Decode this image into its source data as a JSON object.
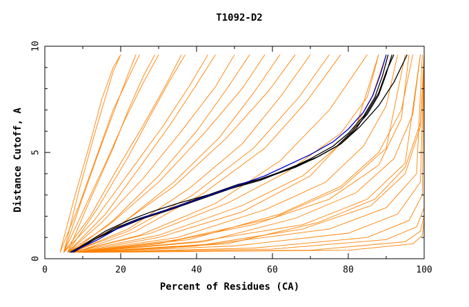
{
  "chart_data": {
    "type": "line",
    "title": "T1092-D2",
    "xlabel": "Percent of Residues (CA)",
    "ylabel": "Distance Cutoff, A",
    "xlim": [
      0,
      100
    ],
    "ylim": [
      0,
      10
    ],
    "x_ticks": [
      {
        "value": 0,
        "label": "0"
      },
      {
        "value": 20,
        "label": "20"
      },
      {
        "value": 40,
        "label": "40"
      },
      {
        "value": 60,
        "label": "60"
      },
      {
        "value": 80,
        "label": "80"
      },
      {
        "value": 100,
        "label": "100"
      }
    ],
    "y_ticks": [
      {
        "value": 0,
        "label": "0"
      },
      {
        "value": 5,
        "label": "5"
      },
      {
        "value": 10,
        "label": "10"
      }
    ],
    "minor_x_step": 10,
    "minor_y_step": 1,
    "grid": false,
    "legend": "none",
    "colors": {
      "background_models": "#ff8000",
      "highlight_models": "#000000",
      "reference_model": "#0000cc"
    },
    "series": [
      {
        "group": "background",
        "x": [
          4,
          8,
          12,
          15,
          18,
          20
        ],
        "y": [
          0.3,
          3,
          5.5,
          7.5,
          9,
          9.6
        ]
      },
      {
        "group": "background",
        "x": [
          4,
          9,
          14,
          18,
          22,
          25
        ],
        "y": [
          0.3,
          2.5,
          5,
          7,
          8.5,
          9.6
        ]
      },
      {
        "group": "background",
        "x": [
          5,
          10,
          16,
          21,
          26,
          30
        ],
        "y": [
          0.3,
          2.2,
          4.5,
          6.5,
          8.3,
          9.6
        ]
      },
      {
        "group": "background",
        "x": [
          5,
          12,
          19,
          26,
          32,
          36
        ],
        "y": [
          0.3,
          2,
          4.2,
          6.3,
          8.2,
          9.6
        ]
      },
      {
        "group": "background",
        "x": [
          5,
          13,
          22,
          31,
          38,
          43
        ],
        "y": [
          0.3,
          1.8,
          4,
          6.2,
          8.1,
          9.6
        ]
      },
      {
        "group": "background",
        "x": [
          6,
          15,
          26,
          36,
          45,
          50
        ],
        "y": [
          0.3,
          1.7,
          3.8,
          6,
          8.1,
          9.6
        ]
      },
      {
        "group": "background",
        "x": [
          6,
          17,
          30,
          42,
          52,
          58
        ],
        "y": [
          0.3,
          1.6,
          3.6,
          5.9,
          8,
          9.6
        ]
      },
      {
        "group": "background",
        "x": [
          6,
          19,
          34,
          48,
          59,
          66
        ],
        "y": [
          0.3,
          1.5,
          3.4,
          5.7,
          7.9,
          9.6
        ]
      },
      {
        "group": "background",
        "x": [
          7,
          22,
          39,
          55,
          67,
          75
        ],
        "y": [
          0.3,
          1.3,
          3,
          5.2,
          7.6,
          9.6
        ]
      },
      {
        "group": "background",
        "x": [
          7,
          25,
          45,
          62,
          75,
          85
        ],
        "y": [
          0.3,
          1.1,
          2.6,
          4.6,
          7,
          9.6
        ]
      },
      {
        "group": "background",
        "x": [
          8,
          30,
          52,
          70,
          82,
          88
        ],
        "y": [
          0.3,
          1,
          2.2,
          3.9,
          6.2,
          9.6
        ]
      },
      {
        "group": "background",
        "x": [
          8,
          35,
          60,
          78,
          90,
          95
        ],
        "y": [
          0.3,
          0.9,
          1.9,
          3.3,
          5.2,
          9.6
        ]
      },
      {
        "group": "background",
        "x": [
          8,
          40,
          68,
          85,
          95,
          99
        ],
        "y": [
          0.3,
          0.8,
          1.6,
          2.8,
          4.5,
          9.6
        ]
      },
      {
        "group": "background",
        "x": [
          9,
          45,
          75,
          90,
          98,
          99.5
        ],
        "y": [
          0.3,
          0.7,
          1.4,
          2.4,
          4,
          9.6
        ]
      },
      {
        "group": "background",
        "x": [
          9,
          50,
          80,
          93,
          99,
          100
        ],
        "y": [
          0.3,
          0.6,
          1.2,
          2.1,
          3.6,
          9.6
        ]
      },
      {
        "group": "background",
        "x": [
          10,
          55,
          85,
          96,
          99.5,
          100
        ],
        "y": [
          0.3,
          0.5,
          1.0,
          1.8,
          3,
          9.6
        ]
      },
      {
        "group": "background",
        "x": [
          10,
          60,
          90,
          98,
          100,
          100
        ],
        "y": [
          0.3,
          0.45,
          0.9,
          1.5,
          2.4,
          9.6
        ]
      },
      {
        "group": "background",
        "x": [
          11,
          70,
          95,
          99,
          100,
          100
        ],
        "y": [
          0.3,
          0.4,
          0.8,
          1.3,
          2,
          9.6
        ]
      },
      {
        "group": "background",
        "x": [
          12,
          80,
          97,
          99.5,
          100,
          100
        ],
        "y": [
          0.3,
          0.4,
          0.7,
          1.1,
          1.8,
          9.6
        ]
      },
      {
        "group": "background",
        "x": [
          7,
          28,
          48,
          64,
          78,
          85,
          88
        ],
        "y": [
          0.3,
          1.2,
          2.6,
          4.1,
          5.9,
          7.6,
          9.6
        ]
      },
      {
        "group": "background",
        "x": [
          7,
          30,
          52,
          68,
          80,
          86,
          90
        ],
        "y": [
          0.3,
          1.1,
          2.5,
          3.9,
          5.7,
          7.5,
          9.6
        ]
      },
      {
        "group": "background",
        "x": [
          8,
          35,
          58,
          74,
          84,
          90,
          93
        ],
        "y": [
          0.3,
          1,
          2.3,
          3.6,
          5.3,
          7.2,
          9.6
        ]
      },
      {
        "group": "background",
        "x": [
          8,
          38,
          62,
          78,
          88,
          94,
          97
        ],
        "y": [
          0.3,
          0.9,
          2.1,
          3.4,
          5,
          7,
          9.6
        ]
      },
      {
        "group": "background",
        "x": [
          9,
          42,
          66,
          82,
          92,
          97,
          99
        ],
        "y": [
          0.3,
          0.8,
          1.9,
          3.1,
          4.7,
          6.8,
          9.6
        ]
      },
      {
        "group": "background",
        "x": [
          10,
          48,
          72,
          87,
          95,
          99,
          100
        ],
        "y": [
          0.3,
          0.7,
          1.7,
          2.8,
          4.3,
          6.4,
          9.6
        ]
      },
      {
        "group": "background",
        "x": [
          6,
          12,
          18,
          22,
          26,
          29
        ],
        "y": [
          0.3,
          2.8,
          5.2,
          7,
          8.6,
          9.6
        ]
      },
      {
        "group": "background",
        "x": [
          6,
          14,
          22,
          28,
          33,
          37
        ],
        "y": [
          0.3,
          2.4,
          4.8,
          6.8,
          8.4,
          9.6
        ]
      },
      {
        "group": "background",
        "x": [
          6,
          16,
          25,
          33,
          40,
          45
        ],
        "y": [
          0.3,
          2.1,
          4.3,
          6.3,
          8.2,
          9.6
        ]
      },
      {
        "group": "background",
        "x": [
          7,
          18,
          30,
          40,
          48,
          54
        ],
        "y": [
          0.3,
          1.8,
          3.9,
          6,
          8,
          9.6
        ]
      },
      {
        "group": "background",
        "x": [
          7,
          20,
          34,
          46,
          55,
          62
        ],
        "y": [
          0.3,
          1.6,
          3.6,
          5.7,
          7.8,
          9.6
        ]
      },
      {
        "group": "background",
        "x": [
          7,
          22,
          38,
          52,
          62,
          70
        ],
        "y": [
          0.3,
          1.4,
          3.3,
          5.4,
          7.6,
          9.6
        ]
      },
      {
        "group": "background",
        "x": [
          8,
          24,
          42,
          58,
          69,
          78
        ],
        "y": [
          0.3,
          1.3,
          3.1,
          5.2,
          7.4,
          9.6
        ]
      },
      {
        "group": "background",
        "x": [
          5,
          9,
          13,
          16,
          18,
          20
        ],
        "y": [
          0.3,
          3.2,
          5.8,
          7.6,
          8.8,
          9.6
        ]
      },
      {
        "group": "background",
        "x": [
          5,
          10,
          15,
          19,
          22,
          24
        ],
        "y": [
          0.3,
          2.9,
          5.4,
          7.3,
          8.7,
          9.6
        ]
      },
      {
        "group": "background",
        "x": [
          9,
          30,
          55,
          75,
          88,
          94,
          96
        ],
        "y": [
          0.3,
          0.7,
          1.6,
          2.8,
          4.4,
          6.6,
          9.6
        ]
      },
      {
        "group": "background",
        "x": [
          11,
          40,
          68,
          86,
          95,
          99,
          100
        ],
        "y": [
          0.3,
          0.6,
          1.4,
          2.5,
          4,
          6.2,
          9.6
        ]
      },
      {
        "group": "highlight",
        "x": [
          6.5,
          12,
          18,
          25,
          32,
          40,
          48,
          56,
          64,
          70,
          76,
          80,
          84,
          87,
          89,
          90.5
        ],
        "y": [
          0.3,
          0.8,
          1.4,
          1.9,
          2.3,
          2.8,
          3.3,
          3.7,
          4.2,
          4.7,
          5.3,
          5.9,
          6.7,
          7.6,
          8.6,
          9.6
        ]
      },
      {
        "group": "highlight",
        "x": [
          7,
          13,
          19,
          26,
          33,
          41,
          49,
          57,
          64,
          71,
          77,
          81,
          85,
          88,
          90,
          91.5
        ],
        "y": [
          0.3,
          0.9,
          1.4,
          1.9,
          2.3,
          2.8,
          3.3,
          3.7,
          4.2,
          4.7,
          5.3,
          6,
          6.8,
          7.7,
          8.7,
          9.6
        ]
      },
      {
        "group": "highlight",
        "x": [
          7,
          16,
          22,
          28,
          35,
          43,
          51,
          58,
          66,
          72,
          78,
          83,
          88,
          92,
          95.5
        ],
        "y": [
          0.3,
          1.3,
          1.8,
          2.2,
          2.6,
          3,
          3.5,
          3.8,
          4.3,
          4.8,
          5.4,
          6.2,
          7.2,
          8.3,
          9.6
        ]
      },
      {
        "group": "highlight",
        "x": [
          7.5,
          14,
          20,
          27,
          34,
          42,
          50,
          58,
          65,
          72,
          78,
          82,
          85,
          88,
          90,
          92
        ],
        "y": [
          0.3,
          1,
          1.5,
          2,
          2.4,
          2.9,
          3.4,
          3.8,
          4.3,
          4.8,
          5.4,
          6.1,
          6.9,
          7.8,
          8.8,
          9.6
        ]
      },
      {
        "group": "reference",
        "x": [
          7,
          14,
          20,
          27,
          34,
          42,
          50,
          58,
          64,
          70,
          76,
          80,
          84,
          86.5,
          88.5,
          90
        ],
        "y": [
          0.3,
          0.9,
          1.5,
          2,
          2.4,
          2.9,
          3.4,
          3.9,
          4.4,
          4.9,
          5.5,
          6.1,
          6.9,
          7.7,
          8.7,
          9.6
        ]
      }
    ]
  }
}
